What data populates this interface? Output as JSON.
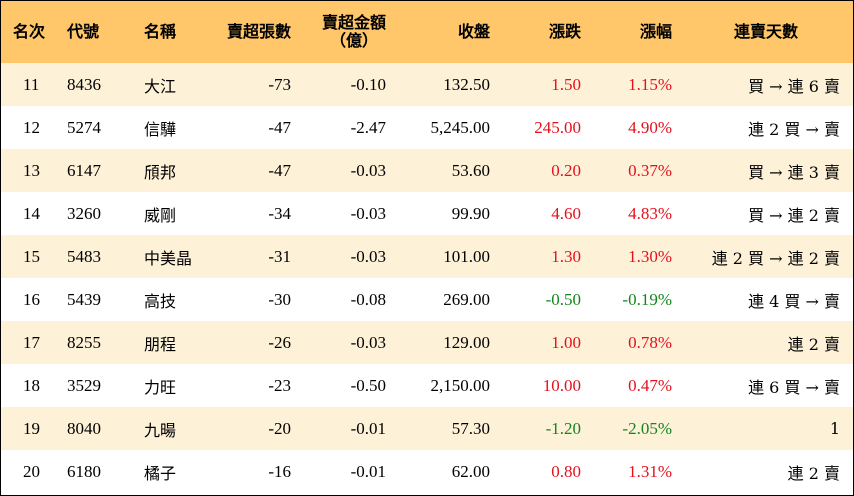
{
  "colors": {
    "header_bg": "#ffc66a",
    "stripe_bg": "#fdf1d8",
    "up": "#e5101d",
    "down": "#12861e"
  },
  "headers": {
    "rank": "名次",
    "code": "代號",
    "name": "名稱",
    "sell_lots": "賣超張數",
    "sell_amount_line1": "賣超金額",
    "sell_amount_line2": "（億）",
    "close": "收盤",
    "change": "漲跌",
    "pct": "漲幅",
    "streak": "連賣天數"
  },
  "rows": [
    {
      "rank": "11",
      "code": "8436",
      "name": "大江",
      "sell_lots": "-73",
      "sell_amount": "-0.10",
      "close": "132.50",
      "change": "1.50",
      "pct": "1.15%",
      "streak": "買 → 連 6 賣",
      "dir": "up"
    },
    {
      "rank": "12",
      "code": "5274",
      "name": "信驊",
      "sell_lots": "-47",
      "sell_amount": "-2.47",
      "close": "5,245.00",
      "change": "245.00",
      "pct": "4.90%",
      "streak": "連 2 買 → 賣",
      "dir": "up"
    },
    {
      "rank": "13",
      "code": "6147",
      "name": "頎邦",
      "sell_lots": "-47",
      "sell_amount": "-0.03",
      "close": "53.60",
      "change": "0.20",
      "pct": "0.37%",
      "streak": "買 → 連 3 賣",
      "dir": "up"
    },
    {
      "rank": "14",
      "code": "3260",
      "name": "威剛",
      "sell_lots": "-34",
      "sell_amount": "-0.03",
      "close": "99.90",
      "change": "4.60",
      "pct": "4.83%",
      "streak": "買 → 連 2 賣",
      "dir": "up"
    },
    {
      "rank": "15",
      "code": "5483",
      "name": "中美晶",
      "sell_lots": "-31",
      "sell_amount": "-0.03",
      "close": "101.00",
      "change": "1.30",
      "pct": "1.30%",
      "streak": "連 2 買 → 連 2 賣",
      "dir": "up"
    },
    {
      "rank": "16",
      "code": "5439",
      "name": "高技",
      "sell_lots": "-30",
      "sell_amount": "-0.08",
      "close": "269.00",
      "change": "-0.50",
      "pct": "-0.19%",
      "streak": "連 4 買 → 賣",
      "dir": "down"
    },
    {
      "rank": "17",
      "code": "8255",
      "name": "朋程",
      "sell_lots": "-26",
      "sell_amount": "-0.03",
      "close": "129.00",
      "change": "1.00",
      "pct": "0.78%",
      "streak": "連 2 賣",
      "dir": "up"
    },
    {
      "rank": "18",
      "code": "3529",
      "name": "力旺",
      "sell_lots": "-23",
      "sell_amount": "-0.50",
      "close": "2,150.00",
      "change": "10.00",
      "pct": "0.47%",
      "streak": "連 6 買 → 賣",
      "dir": "up"
    },
    {
      "rank": "19",
      "code": "8040",
      "name": "九暘",
      "sell_lots": "-20",
      "sell_amount": "-0.01",
      "close": "57.30",
      "change": "-1.20",
      "pct": "-2.05%",
      "streak": "1",
      "dir": "down"
    },
    {
      "rank": "20",
      "code": "6180",
      "name": "橘子",
      "sell_lots": "-16",
      "sell_amount": "-0.01",
      "close": "62.00",
      "change": "0.80",
      "pct": "1.31%",
      "streak": "連 2 賣",
      "dir": "up"
    }
  ]
}
